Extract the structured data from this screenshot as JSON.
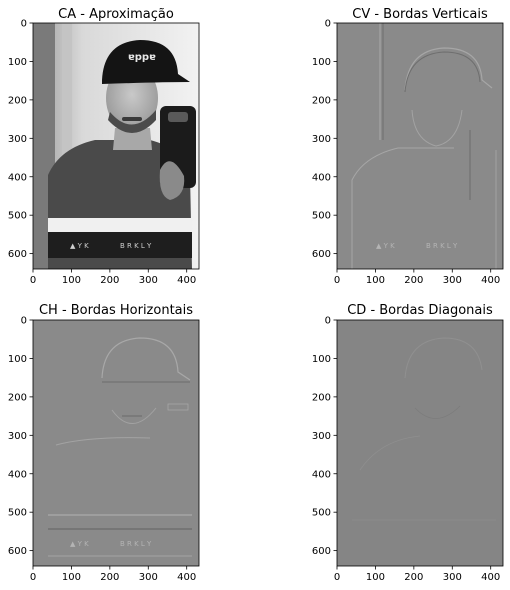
{
  "chart_data": [
    {
      "type": "image",
      "title": "CA - Aproximação",
      "xlim": [
        0,
        432
      ],
      "ylim": [
        640,
        0
      ],
      "xticks": [
        0,
        100,
        200,
        300,
        400
      ],
      "yticks": [
        0,
        100,
        200,
        300,
        400,
        500,
        600
      ],
      "colormap": "gray",
      "content": "grayscale photo"
    },
    {
      "type": "image",
      "title": "CV - Bordas Verticais",
      "xlim": [
        0,
        432
      ],
      "ylim": [
        640,
        0
      ],
      "xticks": [
        0,
        100,
        200,
        300,
        400
      ],
      "yticks": [
        0,
        100,
        200,
        300,
        400,
        500,
        600
      ],
      "colormap": "gray",
      "content": "vertical edge map"
    },
    {
      "type": "image",
      "title": "CH - Bordas Horizontais",
      "xlim": [
        0,
        432
      ],
      "ylim": [
        640,
        0
      ],
      "xticks": [
        0,
        100,
        200,
        300,
        400
      ],
      "yticks": [
        0,
        100,
        200,
        300,
        400,
        500,
        600
      ],
      "colormap": "gray",
      "content": "horizontal edge map"
    },
    {
      "type": "image",
      "title": "CD - Bordas Diagonais",
      "xlim": [
        0,
        432
      ],
      "ylim": [
        640,
        0
      ],
      "xticks": [
        0,
        100,
        200,
        300,
        400
      ],
      "yticks": [
        0,
        100,
        200,
        300,
        400,
        500,
        600
      ],
      "colormap": "gray",
      "content": "diagonal edge map"
    }
  ]
}
